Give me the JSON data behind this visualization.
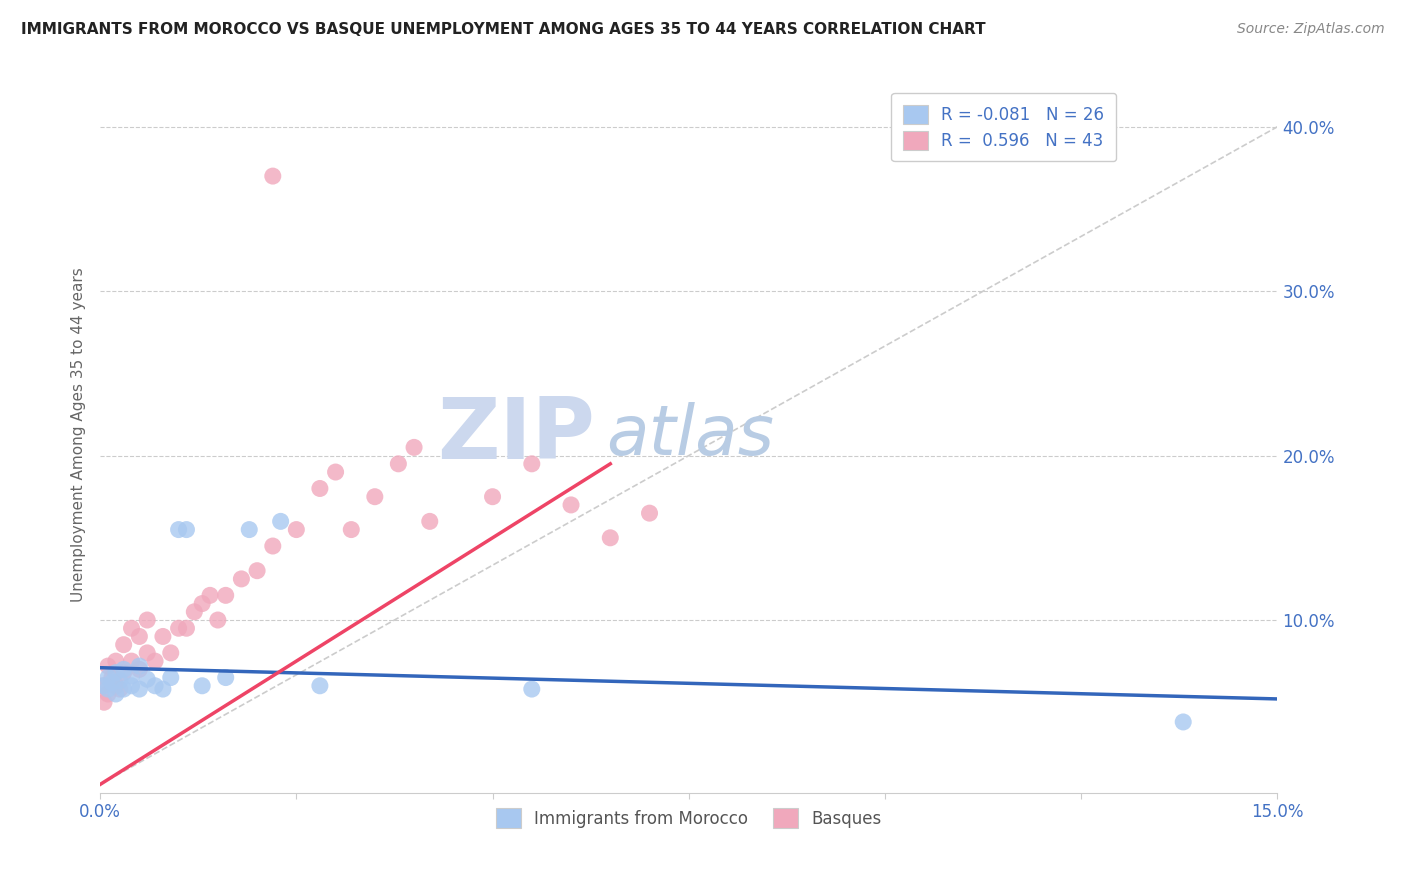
{
  "title": "IMMIGRANTS FROM MOROCCO VS BASQUE UNEMPLOYMENT AMONG AGES 35 TO 44 YEARS CORRELATION CHART",
  "source": "Source: ZipAtlas.com",
  "ylabel": "Unemployment Among Ages 35 to 44 years",
  "xlim": [
    0.0,
    0.15
  ],
  "ylim": [
    -0.005,
    0.43
  ],
  "legend_r1": "R = -0.081",
  "legend_n1": "N = 26",
  "legend_r2": "R =  0.596",
  "legend_n2": "N = 43",
  "blue_color": "#a8c8f0",
  "pink_color": "#f0a8bc",
  "blue_line_color": "#3366bb",
  "pink_line_color": "#ee4466",
  "ref_line_color": "#cccccc",
  "watermark_zip": "ZIP",
  "watermark_atlas": "atlas",
  "watermark_color_zip": "#ccd8ee",
  "watermark_color_atlas": "#b8cce4",
  "blue_scatter_x": [
    0.0005,
    0.001,
    0.001,
    0.0015,
    0.002,
    0.002,
    0.0025,
    0.003,
    0.003,
    0.004,
    0.004,
    0.005,
    0.005,
    0.006,
    0.007,
    0.008,
    0.009,
    0.01,
    0.011,
    0.013,
    0.016,
    0.019,
    0.023,
    0.028,
    0.055,
    0.138
  ],
  "blue_scatter_y": [
    0.06,
    0.058,
    0.065,
    0.062,
    0.055,
    0.068,
    0.063,
    0.058,
    0.07,
    0.06,
    0.066,
    0.072,
    0.058,
    0.064,
    0.06,
    0.058,
    0.065,
    0.155,
    0.155,
    0.06,
    0.065,
    0.155,
    0.16,
    0.06,
    0.058,
    0.038
  ],
  "pink_scatter_x": [
    0.0003,
    0.0005,
    0.001,
    0.001,
    0.0015,
    0.002,
    0.002,
    0.0025,
    0.003,
    0.003,
    0.004,
    0.004,
    0.005,
    0.005,
    0.006,
    0.006,
    0.007,
    0.008,
    0.009,
    0.01,
    0.011,
    0.012,
    0.013,
    0.014,
    0.015,
    0.016,
    0.018,
    0.02,
    0.022,
    0.025,
    0.028,
    0.03,
    0.032,
    0.035,
    0.038,
    0.04,
    0.042,
    0.05,
    0.055,
    0.06,
    0.065,
    0.07,
    0.022
  ],
  "pink_scatter_y": [
    0.06,
    0.05,
    0.055,
    0.072,
    0.065,
    0.06,
    0.075,
    0.058,
    0.068,
    0.085,
    0.075,
    0.095,
    0.07,
    0.09,
    0.08,
    0.1,
    0.075,
    0.09,
    0.08,
    0.095,
    0.095,
    0.105,
    0.11,
    0.115,
    0.1,
    0.115,
    0.125,
    0.13,
    0.145,
    0.155,
    0.18,
    0.19,
    0.155,
    0.175,
    0.195,
    0.205,
    0.16,
    0.175,
    0.195,
    0.17,
    0.15,
    0.165,
    0.37
  ],
  "blue_line_x": [
    0.0,
    0.15
  ],
  "blue_line_y": [
    0.071,
    0.052
  ],
  "pink_line_x": [
    0.0,
    0.065
  ],
  "pink_line_y": [
    0.0,
    0.195
  ]
}
